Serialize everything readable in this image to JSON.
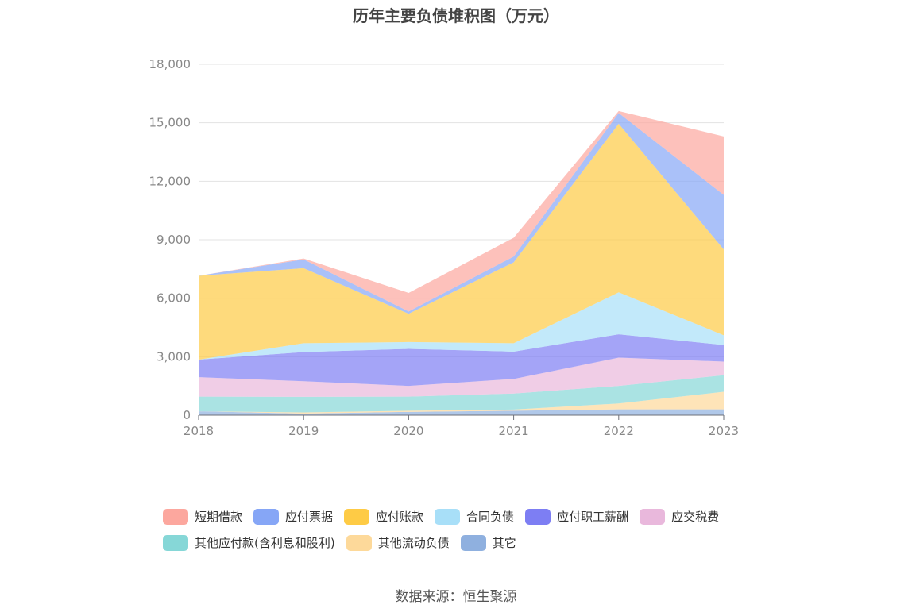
{
  "chart_data": {
    "type": "area",
    "stacked": true,
    "title": "历年主要负债堆积图（万元）",
    "source": "数据来源：恒生聚源",
    "categories": [
      "2018",
      "2019",
      "2020",
      "2021",
      "2022",
      "2023"
    ],
    "ylim": [
      0,
      18000
    ],
    "yticks": [
      0,
      3000,
      6000,
      9000,
      12000,
      15000,
      18000
    ],
    "ytick_labels": [
      "0",
      "3,000",
      "6,000",
      "9,000",
      "12,000",
      "15,000",
      "18,000"
    ],
    "grid": true,
    "legend_position": "bottom",
    "series": [
      {
        "name": "其它",
        "color": "#8fb0df",
        "values": [
          200,
          80,
          170,
          230,
          300,
          300
        ]
      },
      {
        "name": "其他流动负债",
        "color": "#fdd99a",
        "values": [
          0,
          60,
          60,
          60,
          300,
          900
        ]
      },
      {
        "name": "其他应付款(含利息和股利)",
        "color": "#86d7d7",
        "values": [
          750,
          800,
          720,
          820,
          900,
          850
        ]
      },
      {
        "name": "应交税费",
        "color": "#e9b8dc",
        "values": [
          1000,
          800,
          550,
          750,
          1450,
          700
        ]
      },
      {
        "name": "应付职工薪酬",
        "color": "#7d7ef3",
        "values": [
          900,
          1500,
          1900,
          1400,
          1200,
          850
        ]
      },
      {
        "name": "合同负债",
        "color": "#a8dff8",
        "values": [
          0,
          450,
          350,
          430,
          2150,
          500
        ]
      },
      {
        "name": "应付账款",
        "color": "#fecb45",
        "values": [
          4300,
          3850,
          1450,
          4150,
          8650,
          4400
        ]
      },
      {
        "name": "应付票据",
        "color": "#86a6f6",
        "values": [
          0,
          450,
          120,
          300,
          550,
          2800
        ]
      },
      {
        "name": "短期借款",
        "color": "#fca79e",
        "values": [
          0,
          50,
          950,
          960,
          100,
          3000
        ]
      }
    ]
  },
  "legend_rows": [
    [
      "短期借款",
      "应付票据",
      "应付账款",
      "合同负债",
      "应付职工薪酬",
      "应交税费"
    ],
    [
      "其他应付款(含利息和股利)",
      "其他流动负债",
      "其它"
    ]
  ]
}
